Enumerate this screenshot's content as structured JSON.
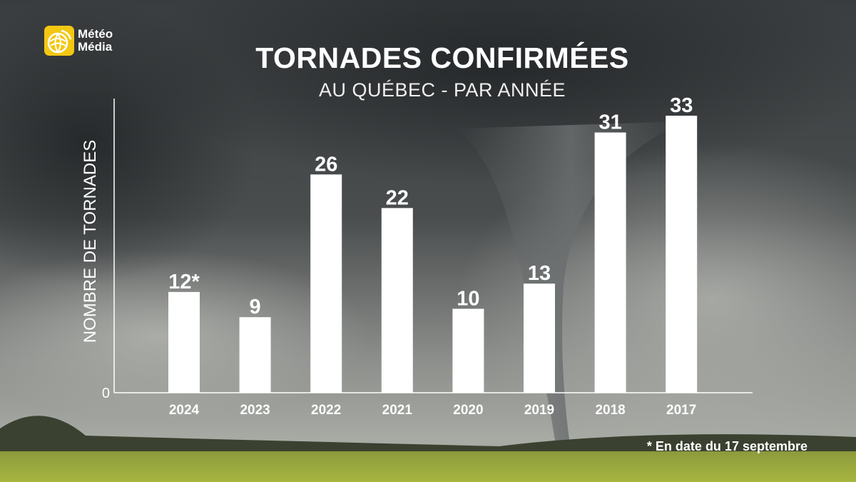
{
  "logo": {
    "line1": "Météo",
    "line2": "Média"
  },
  "footnote": "* En date du 17 septembre",
  "chart_data": {
    "type": "bar",
    "title": "TORNADES CONFIRMÉES",
    "subtitle": "AU QUÉBEC - PAR ANNÉE",
    "xlabel": "",
    "ylabel": "NOMBRE DE TORNADES",
    "categories": [
      "2024",
      "2023",
      "2022",
      "2021",
      "2020",
      "2019",
      "2018",
      "2017"
    ],
    "values": [
      12,
      9,
      26,
      22,
      10,
      13,
      31,
      33
    ],
    "data_labels": [
      "12*",
      "9",
      "26",
      "22",
      "10",
      "13",
      "31",
      "33"
    ],
    "y_tick_labels": [
      "0"
    ],
    "ylim": [
      0,
      35
    ],
    "grid": false,
    "legend": "none",
    "bar_color": "#ffffff",
    "accent_color": "#f3c712"
  }
}
